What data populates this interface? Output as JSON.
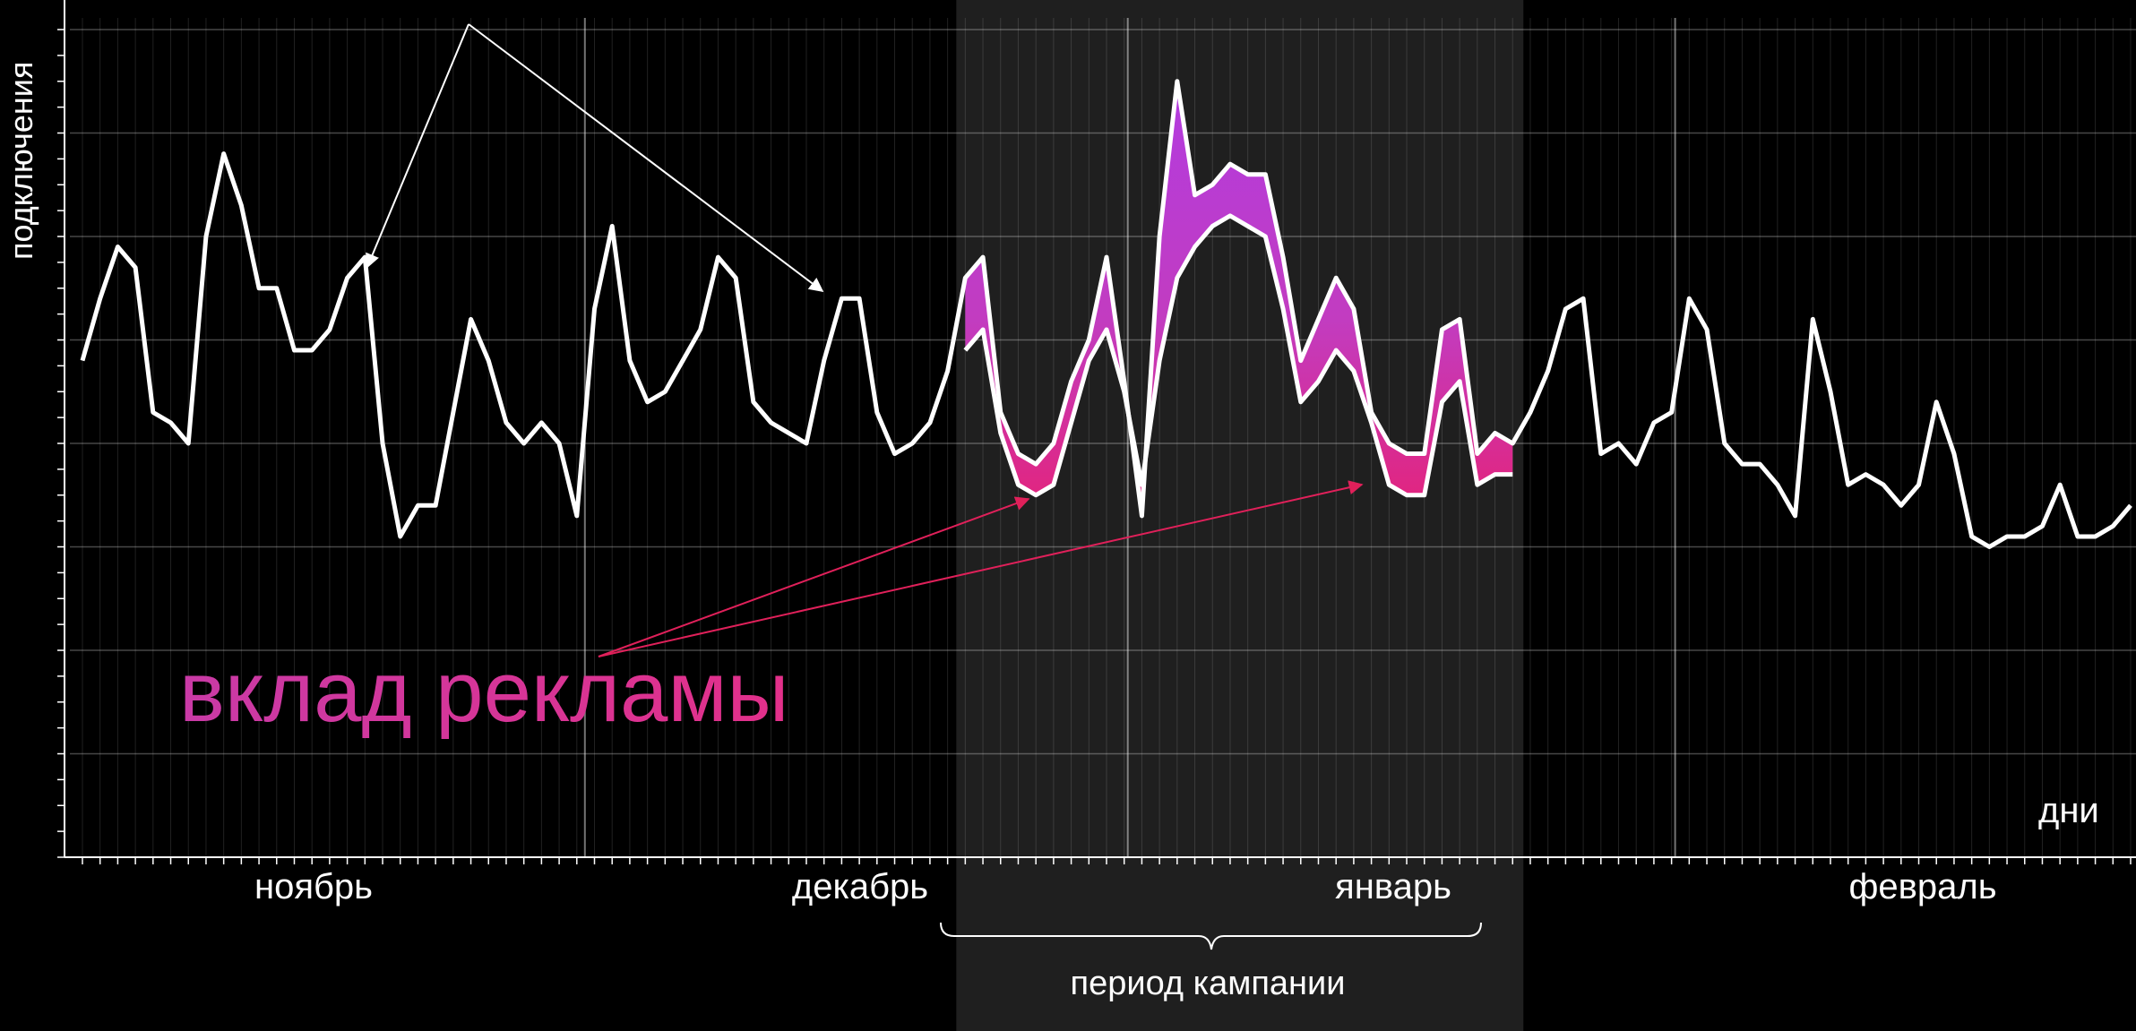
{
  "chart_data": {
    "type": "area",
    "title": "",
    "xlabel": "дни",
    "ylabel": "подключения",
    "x_unit": "day index",
    "ylim": [
      0,
      8
    ],
    "grid": true,
    "months": [
      "ноябрь",
      "декабрь",
      "январь",
      "февраль"
    ],
    "campaign": {
      "label": "период кампании",
      "start_day": 50,
      "end_day": 81
    },
    "annotation": {
      "text": "вклад рекламы",
      "color": "#e0308a"
    },
    "series": [
      {
        "name": "",
        "color": "#ffffff",
        "values": [
          4.8,
          5.4,
          5.9,
          5.7,
          4.3,
          4.2,
          4.0,
          6.0,
          6.8,
          6.3,
          5.5,
          5.5,
          4.9,
          4.9,
          5.1,
          5.6,
          5.8,
          4.0,
          3.1,
          3.4,
          3.4,
          4.3,
          5.2,
          4.8,
          4.2,
          4.0,
          4.2,
          4.0,
          3.3,
          5.3,
          6.1,
          4.8,
          4.4,
          4.5,
          4.8,
          5.1,
          5.8,
          5.6,
          4.4,
          4.2,
          4.1,
          4.0,
          4.8,
          5.4,
          5.4,
          4.3,
          3.9,
          4.0,
          4.2,
          4.7,
          5.6,
          5.8,
          4.3,
          3.9,
          3.8,
          4.0,
          4.6,
          5.0,
          5.8,
          4.6,
          3.3,
          6.0,
          7.5,
          6.4,
          6.5,
          6.7,
          6.6,
          6.6,
          5.8,
          4.8,
          5.2,
          5.6,
          5.3,
          4.3,
          4.0,
          3.9,
          3.9,
          5.1,
          5.2,
          3.9,
          4.1,
          4.0,
          4.3,
          4.7,
          5.3,
          5.4,
          3.9,
          4.0,
          3.8,
          4.2,
          4.3,
          5.4,
          5.1,
          4.0,
          3.8,
          3.8,
          3.6,
          3.3,
          5.2,
          4.5,
          3.6,
          3.7,
          3.6,
          3.4,
          3.6,
          4.4,
          3.9,
          3.1,
          3.0,
          3.1,
          3.1,
          3.2,
          3.6,
          3.1,
          3.1,
          3.2,
          3.4
        ]
      },
      {
        "name": "",
        "color": "#b040d8",
        "start_day": 50,
        "values": [
          4.9,
          5.1,
          4.1,
          3.6,
          3.5,
          3.6,
          4.2,
          4.8,
          5.1,
          4.5,
          3.6,
          4.8,
          5.6,
          5.9,
          6.1,
          6.2,
          6.1,
          6.0,
          5.3,
          4.4,
          4.6,
          4.9,
          4.7,
          4.2,
          3.6,
          3.5,
          3.5,
          4.4,
          4.6,
          3.6,
          3.7,
          3.7
        ]
      }
    ]
  }
}
